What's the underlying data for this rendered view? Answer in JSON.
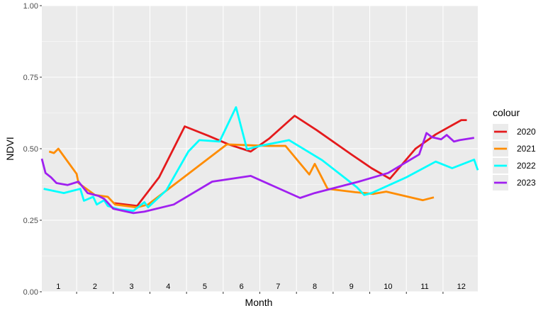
{
  "chart_data": {
    "type": "line",
    "xlabel": "Month",
    "ylabel": "NDVI",
    "xlim": [
      0.55,
      12.45
    ],
    "ylim": [
      0,
      1
    ],
    "yticks": [
      "0.00",
      "0.25",
      "0.50",
      "0.75",
      "1.00"
    ],
    "xticks": [
      "1",
      "2",
      "3",
      "4",
      "5",
      "6",
      "7",
      "8",
      "9",
      "10",
      "11",
      "12"
    ],
    "grid": true,
    "legend": {
      "title": "colour",
      "position": "right"
    },
    "series": [
      {
        "name": "2020",
        "color": "#e41a1c",
        "points": [
          [
            2.5,
            0.31
          ],
          [
            3.15,
            0.3
          ],
          [
            3.75,
            0.4
          ],
          [
            4.45,
            0.578
          ],
          [
            5.1,
            0.545
          ],
          [
            5.65,
            0.515
          ],
          [
            6.25,
            0.49
          ],
          [
            6.75,
            0.535
          ],
          [
            7.45,
            0.615
          ],
          [
            8.05,
            0.565
          ],
          [
            9.0,
            0.48
          ],
          [
            9.55,
            0.432
          ],
          [
            10.05,
            0.395
          ],
          [
            10.75,
            0.5
          ],
          [
            11.3,
            0.55
          ],
          [
            12.0,
            0.6
          ],
          [
            12.15,
            0.6
          ]
        ]
      },
      {
        "name": "2021",
        "color": "#ff8c00",
        "points": [
          [
            0.75,
            0.49
          ],
          [
            0.88,
            0.485
          ],
          [
            1.0,
            0.5
          ],
          [
            1.5,
            0.412
          ],
          [
            1.55,
            0.38
          ],
          [
            2.0,
            0.338
          ],
          [
            2.35,
            0.332
          ],
          [
            2.55,
            0.305
          ],
          [
            3.15,
            0.295
          ],
          [
            3.45,
            0.305
          ],
          [
            4.2,
            0.378
          ],
          [
            5.6,
            0.515
          ],
          [
            6.25,
            0.512
          ],
          [
            6.75,
            0.51
          ],
          [
            7.2,
            0.51
          ],
          [
            7.85,
            0.41
          ],
          [
            8.0,
            0.447
          ],
          [
            8.35,
            0.36
          ],
          [
            9.1,
            0.348
          ],
          [
            9.6,
            0.342
          ],
          [
            9.95,
            0.35
          ],
          [
            10.95,
            0.32
          ],
          [
            11.25,
            0.33
          ]
        ]
      },
      {
        "name": "2022",
        "color": "#00ffff",
        "points": [
          [
            0.6,
            0.36
          ],
          [
            1.15,
            0.345
          ],
          [
            1.6,
            0.36
          ],
          [
            1.7,
            0.318
          ],
          [
            1.95,
            0.332
          ],
          [
            2.05,
            0.305
          ],
          [
            2.25,
            0.32
          ],
          [
            2.35,
            0.3
          ],
          [
            2.65,
            0.288
          ],
          [
            3.05,
            0.283
          ],
          [
            3.35,
            0.313
          ],
          [
            3.45,
            0.295
          ],
          [
            3.95,
            0.355
          ],
          [
            4.55,
            0.49
          ],
          [
            4.85,
            0.53
          ],
          [
            5.4,
            0.525
          ],
          [
            5.85,
            0.645
          ],
          [
            6.15,
            0.498
          ],
          [
            6.5,
            0.51
          ],
          [
            7.3,
            0.53
          ],
          [
            8.2,
            0.46
          ],
          [
            9.15,
            0.365
          ],
          [
            9.35,
            0.338
          ],
          [
            9.55,
            0.345
          ],
          [
            10.5,
            0.4
          ],
          [
            11.3,
            0.455
          ],
          [
            11.75,
            0.432
          ],
          [
            12.35,
            0.462
          ],
          [
            12.45,
            0.425
          ]
        ]
      },
      {
        "name": "2023",
        "color": "#a020f0",
        "points": [
          [
            0.55,
            0.465
          ],
          [
            0.65,
            0.415
          ],
          [
            0.8,
            0.4
          ],
          [
            0.95,
            0.38
          ],
          [
            1.25,
            0.373
          ],
          [
            1.55,
            0.385
          ],
          [
            1.8,
            0.345
          ],
          [
            2.1,
            0.335
          ],
          [
            2.25,
            0.325
          ],
          [
            2.5,
            0.29
          ],
          [
            2.8,
            0.282
          ],
          [
            3.05,
            0.275
          ],
          [
            3.35,
            0.28
          ],
          [
            4.15,
            0.305
          ],
          [
            5.2,
            0.385
          ],
          [
            6.25,
            0.405
          ],
          [
            7.6,
            0.328
          ],
          [
            8.0,
            0.345
          ],
          [
            9.2,
            0.385
          ],
          [
            10.0,
            0.415
          ],
          [
            10.85,
            0.48
          ],
          [
            11.05,
            0.555
          ],
          [
            11.2,
            0.54
          ],
          [
            11.45,
            0.533
          ],
          [
            11.6,
            0.548
          ],
          [
            11.8,
            0.525
          ],
          [
            11.95,
            0.53
          ],
          [
            12.35,
            0.538
          ]
        ]
      }
    ]
  }
}
